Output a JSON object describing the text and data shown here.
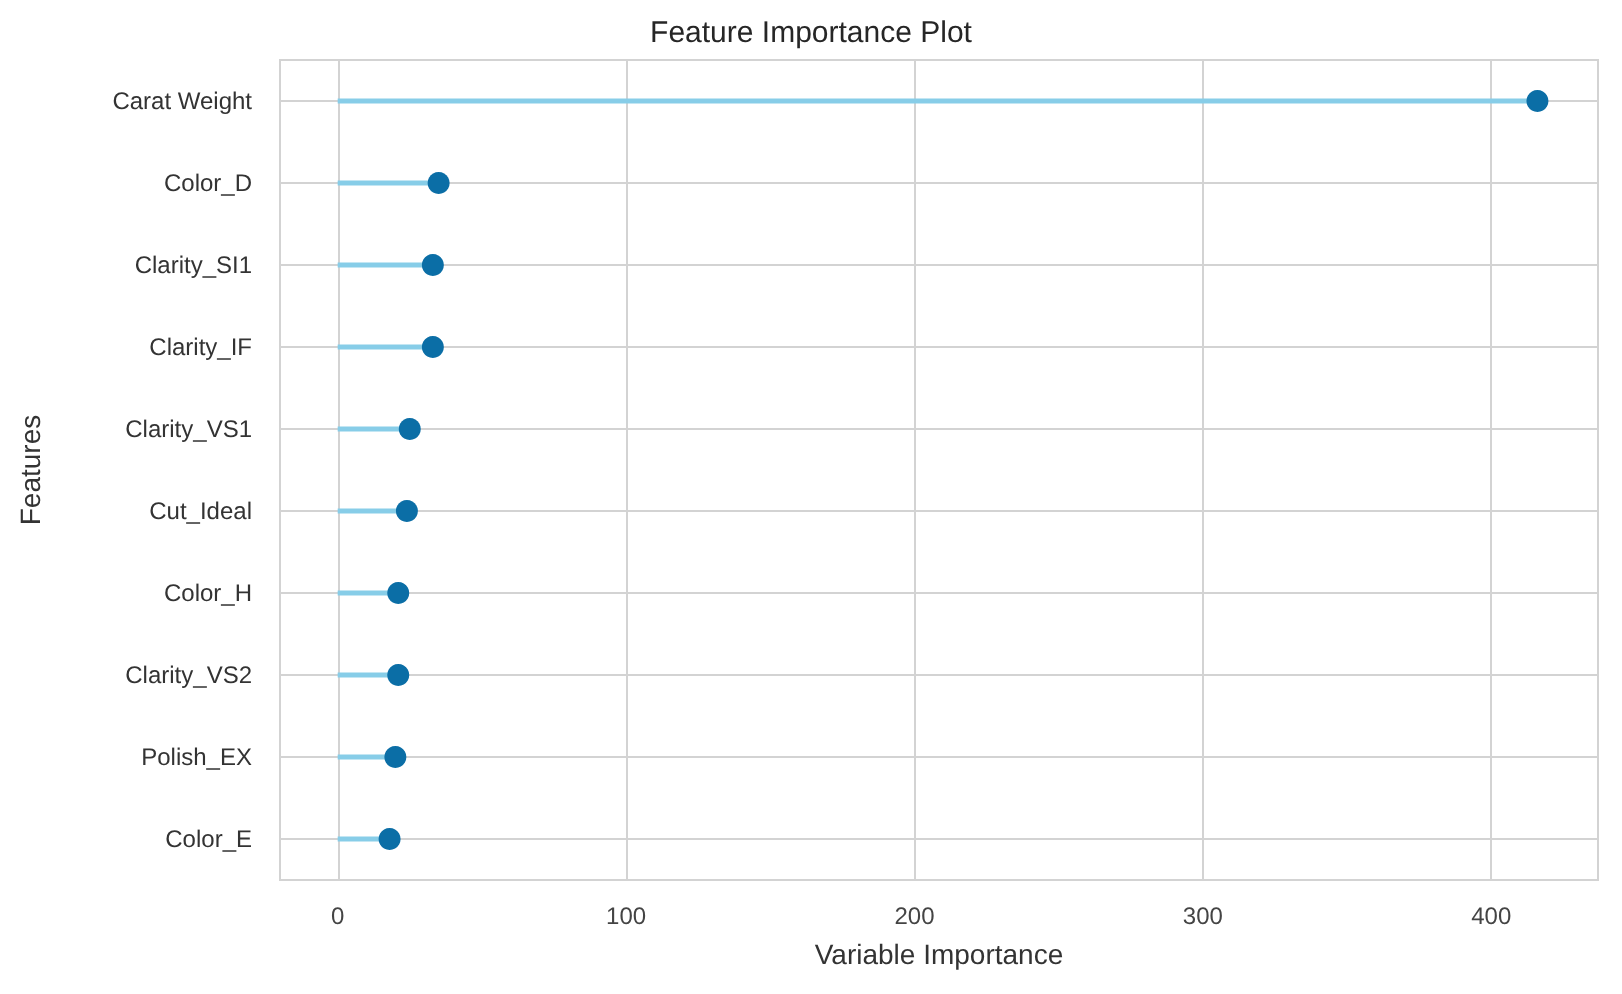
{
  "chart_data": {
    "type": "lollipop",
    "orientation": "horizontal",
    "title": "Feature Importance Plot",
    "xlabel": "Variable Importance",
    "ylabel": "Features",
    "categories": [
      "Carat Weight",
      "Color_D",
      "Clarity_SI1",
      "Clarity_IF",
      "Clarity_VS1",
      "Cut_Ideal",
      "Color_H",
      "Clarity_VS2",
      "Polish_EX",
      "Color_E"
    ],
    "values": [
      416,
      35,
      33,
      33,
      25,
      24,
      21,
      21,
      20,
      18
    ],
    "color": "#0b6ea6",
    "xlim": [
      -20,
      437
    ],
    "xticks": [
      0,
      100,
      200,
      300,
      400
    ],
    "grid": true,
    "marker": "circle"
  }
}
